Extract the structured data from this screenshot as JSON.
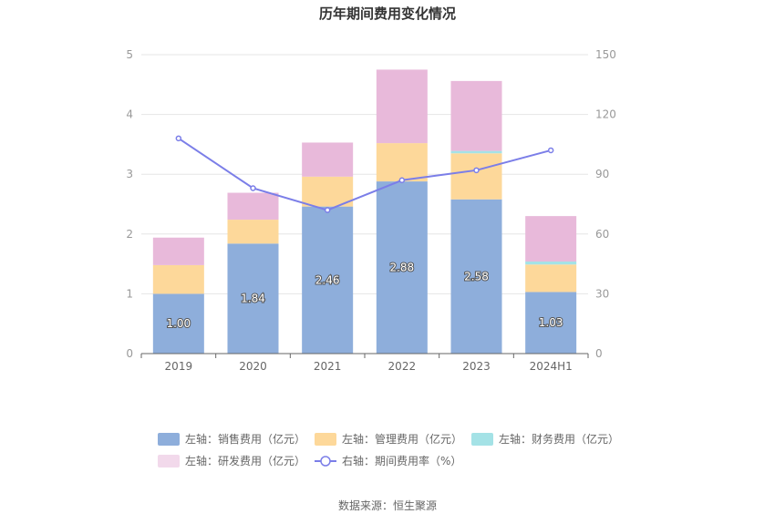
{
  "chart_data": {
    "type": "bar",
    "stacked": true,
    "title": "历年期间费用变化情况",
    "categories": [
      "2019",
      "2020",
      "2021",
      "2022",
      "2023",
      "2024H1"
    ],
    "y_left": {
      "min": 0,
      "max": 5,
      "ticks": [
        "0",
        "1",
        "2",
        "3",
        "4",
        "5"
      ]
    },
    "y_right": {
      "min": 0,
      "max": 150,
      "ticks": [
        "0",
        "30",
        "60",
        "90",
        "120",
        "150"
      ]
    },
    "grid": true,
    "series": [
      {
        "name": "左轴：销售费用（亿元）",
        "axis": "left",
        "color": "#8eaedb",
        "values": [
          1.0,
          1.84,
          2.46,
          2.88,
          2.58,
          1.03
        ],
        "labels": [
          "1.00",
          "1.84",
          "2.46",
          "2.88",
          "2.58",
          "1.03"
        ]
      },
      {
        "name": "左轴：管理费用（亿元）",
        "axis": "left",
        "color": "#fdd89a",
        "values": [
          0.48,
          0.4,
          0.5,
          0.64,
          0.77,
          0.46
        ]
      },
      {
        "name": "左轴：财务费用（亿元）",
        "axis": "left",
        "color": "#a4e2e6",
        "values": [
          0.0,
          0.0,
          0.0,
          0.0,
          0.04,
          0.05
        ]
      },
      {
        "name": "左轴：研发费用（亿元）",
        "axis": "left",
        "color": "#e8b9da",
        "values": [
          0.46,
          0.45,
          0.57,
          1.23,
          1.17,
          0.76
        ]
      },
      {
        "name": "右轴：期间费用率（%）",
        "axis": "right",
        "type": "line",
        "color": "#7b7ee8",
        "values": [
          108,
          83,
          72,
          87,
          92,
          102
        ]
      }
    ],
    "legend_position": "bottom",
    "source": "数据来源：恒生聚源"
  }
}
